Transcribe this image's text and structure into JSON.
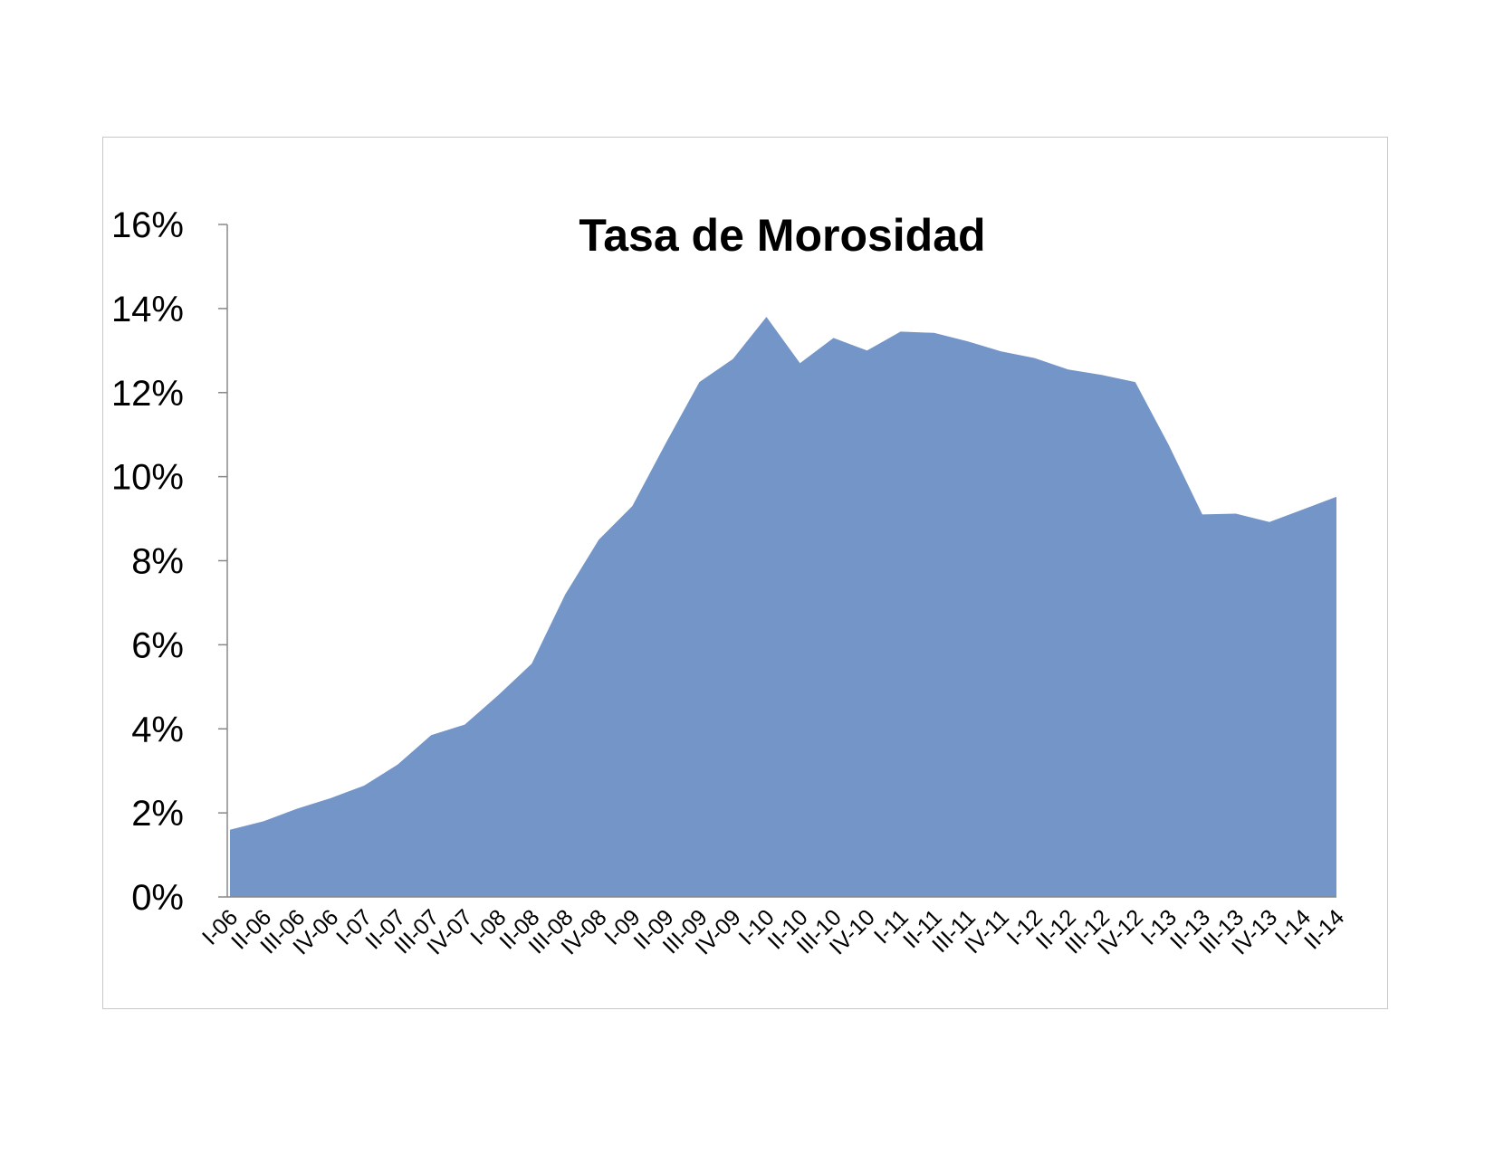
{
  "chart_data": {
    "type": "area",
    "title": "Tasa de Morosidad",
    "xlabel": "",
    "ylabel": "",
    "ylim": [
      0,
      16
    ],
    "ytick_step": 2,
    "ytick_labels": [
      "0%",
      "2%",
      "4%",
      "6%",
      "8%",
      "10%",
      "12%",
      "14%",
      "16%"
    ],
    "categories": [
      "I-06",
      "II-06",
      "III-06",
      "IV-06",
      "I-07",
      "II-07",
      "III-07",
      "IV-07",
      "I-08",
      "II-08",
      "III-08",
      "IV-08",
      "I-09",
      "II-09",
      "III-09",
      "IV-09",
      "I-10",
      "II-10",
      "III-10",
      "IV-10",
      "I-11",
      "II-11",
      "III-11",
      "IV-11",
      "I-12",
      "II-12",
      "III-12",
      "IV-12",
      "I-13",
      "II-13",
      "III-13",
      "IV-13",
      "I-14",
      "II-14"
    ],
    "series": [
      {
        "values": [
          1.6,
          1.8,
          2.1,
          2.35,
          2.65,
          3.15,
          3.85,
          4.1,
          4.8,
          5.55,
          7.2,
          8.5,
          9.3,
          10.8,
          12.25,
          12.8,
          13.8,
          12.7,
          13.3,
          13.0,
          13.45,
          13.42,
          13.22,
          12.98,
          12.82,
          12.55,
          12.42,
          12.25,
          10.75,
          9.1,
          9.12,
          8.92,
          9.22,
          9.52
        ],
        "color": "#7395c7"
      }
    ],
    "axis_color": "#888888",
    "grid": false,
    "legend": "none"
  }
}
